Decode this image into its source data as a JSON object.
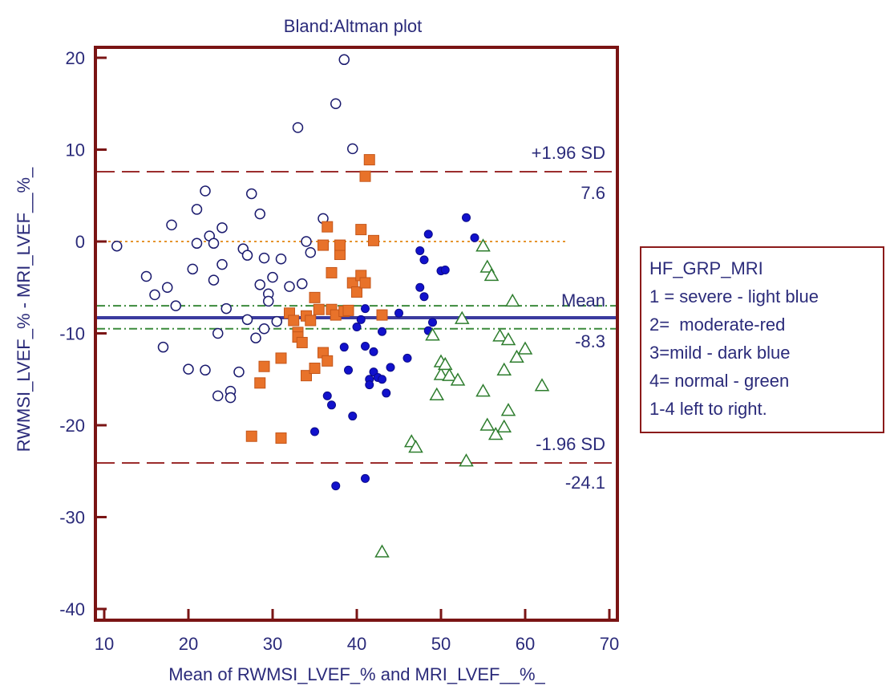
{
  "colors": {
    "frame": "#7a1414",
    "text": "#2b2b7a",
    "mean_line": "#3b3b9e",
    "limit_line": "#9b2d2d",
    "zero_line": "#e6952e",
    "ci_line": "#3b8a3b",
    "severe": "#1a1a6e",
    "moderate": "#e8722a",
    "mild": "#1111cc",
    "normal": "#2e7d2e"
  },
  "chart_data": {
    "type": "scatter",
    "title": "Bland:Altman plot",
    "xlabel": "Mean of RWMSI_LVEF_% and MRI_LVEF__%_",
    "ylabel": "RWMSI_LVEF_% - MRI_LVEF__%_",
    "xlim": [
      10,
      70
    ],
    "ylim": [
      -40,
      20
    ],
    "x_ticks": [
      10,
      20,
      30,
      40,
      50,
      60,
      70
    ],
    "y_ticks": [
      20,
      10,
      0,
      -10,
      -20,
      -30,
      -40
    ],
    "grid": false,
    "reference_lines": {
      "zero": {
        "y": 0,
        "x_end": 65
      },
      "mean": {
        "y": -8.3,
        "label": "Mean",
        "value_label": "-8.3"
      },
      "upper_loa": {
        "y": 7.6,
        "label": "+1.96 SD",
        "value_label": "7.6"
      },
      "lower_loa": {
        "y": -24.1,
        "label": "-1.96 SD",
        "value_label": "-24.1"
      },
      "mean_ci": [
        -7.0,
        -9.5
      ]
    },
    "series": [
      {
        "group": 1,
        "marker": "open-circle",
        "x": [
          11.5,
          15,
          16,
          17,
          17.5,
          18,
          18.5,
          20,
          20.5,
          21,
          21,
          22,
          22,
          22.5,
          23,
          23,
          23.5,
          23.5,
          24,
          24,
          24.5,
          25,
          25,
          26,
          26.5,
          27,
          27,
          27.5,
          28,
          28.5,
          28.5,
          29,
          29,
          29.5,
          29.5,
          30,
          30.5,
          31,
          32,
          33,
          33.5,
          34,
          34.5,
          36,
          38.5,
          39.5,
          37.5
        ],
        "y": [
          -0.5,
          -3.8,
          -5.8,
          -11.5,
          -5,
          1.8,
          -7,
          -13.9,
          -3,
          3.5,
          -0.2,
          -14,
          5.5,
          0.6,
          -4.2,
          -0.2,
          -16.8,
          -10,
          1.5,
          -2.5,
          -7.3,
          -16.3,
          -17,
          -14.2,
          -0.8,
          -8.5,
          -1.5,
          5.2,
          -10.5,
          3,
          -4.7,
          -1.8,
          -9.5,
          -5.7,
          -6.5,
          -3.9,
          -8.7,
          -1.9,
          -4.9,
          12.4,
          -4.6,
          0,
          -1.2,
          2.5,
          19.8,
          10.1,
          15
        ]
      },
      {
        "group": 2,
        "marker": "filled-square",
        "x": [
          27.5,
          28.5,
          29,
          31,
          31,
          32,
          32.5,
          33,
          33,
          33.5,
          34,
          34,
          34.5,
          35,
          35,
          35.5,
          36,
          36,
          36.5,
          36.5,
          37,
          37,
          37.5,
          38,
          38,
          38.5,
          39,
          39.5,
          40,
          40.5,
          40.5,
          41,
          41,
          41.5,
          42,
          43
        ],
        "y": [
          -21.2,
          -15.4,
          -13.6,
          -12.7,
          -21.4,
          -7.8,
          -8.6,
          -9.9,
          -10.4,
          -11,
          -14.6,
          -8.1,
          -8.6,
          -13.8,
          -6.1,
          -7.4,
          -12.1,
          -0.4,
          1.6,
          -13,
          -7.4,
          -3.4,
          -8,
          -1.4,
          -0.4,
          -7.6,
          -7.5,
          -4.5,
          -5.5,
          -3.7,
          1.3,
          -4.5,
          7.1,
          8.9,
          0.1,
          -8
        ]
      },
      {
        "group": 3,
        "marker": "filled-circle",
        "x": [
          35,
          36.5,
          37,
          37.5,
          39,
          39.5,
          40,
          40.5,
          41,
          41,
          41.5,
          41.5,
          42,
          42,
          42.5,
          43,
          43,
          43.5,
          44,
          45,
          46,
          47.5,
          47.5,
          48,
          48,
          48.5,
          48.5,
          49,
          50,
          50.5,
          53,
          54,
          41,
          38.5
        ],
        "y": [
          -20.7,
          -16.8,
          -17.8,
          -26.6,
          -14,
          -19,
          -9.3,
          -8.5,
          -7.3,
          -11.4,
          -15,
          -15.6,
          -12,
          -14.2,
          -14.8,
          -9.8,
          -15,
          -16.5,
          -13.7,
          -7.8,
          -12.7,
          -1,
          -5,
          -6,
          -2,
          -9.7,
          0.8,
          -8.8,
          -3.2,
          -3.1,
          2.6,
          0.4,
          -25.8,
          -11.5
        ]
      },
      {
        "group": 4,
        "marker": "open-triangle",
        "x": [
          43,
          46.5,
          47,
          49,
          49.5,
          50,
          50,
          50.5,
          51,
          52,
          52.5,
          53,
          55,
          55.5,
          55.5,
          56,
          56.5,
          57,
          57.5,
          57.5,
          58,
          58,
          58.5,
          59,
          60,
          62,
          55
        ],
        "y": [
          -33.8,
          -21.8,
          -22.4,
          -10.2,
          -16.7,
          -14.5,
          -13.1,
          -13.4,
          -14.6,
          -15.1,
          -8.4,
          -23.9,
          -16.3,
          -20,
          -2.8,
          -3.7,
          -21,
          -10.3,
          -14,
          -20.2,
          -18.4,
          -10.7,
          -6.5,
          -12.6,
          -11.7,
          -15.7,
          -0.5
        ]
      }
    ]
  },
  "legend": {
    "title": "HF_GRP_MRI",
    "lines": [
      "1 = severe - light blue",
      "2=  moderate-red",
      "3=mild - dark blue",
      "4= normal - green",
      "1-4 left to right."
    ]
  }
}
